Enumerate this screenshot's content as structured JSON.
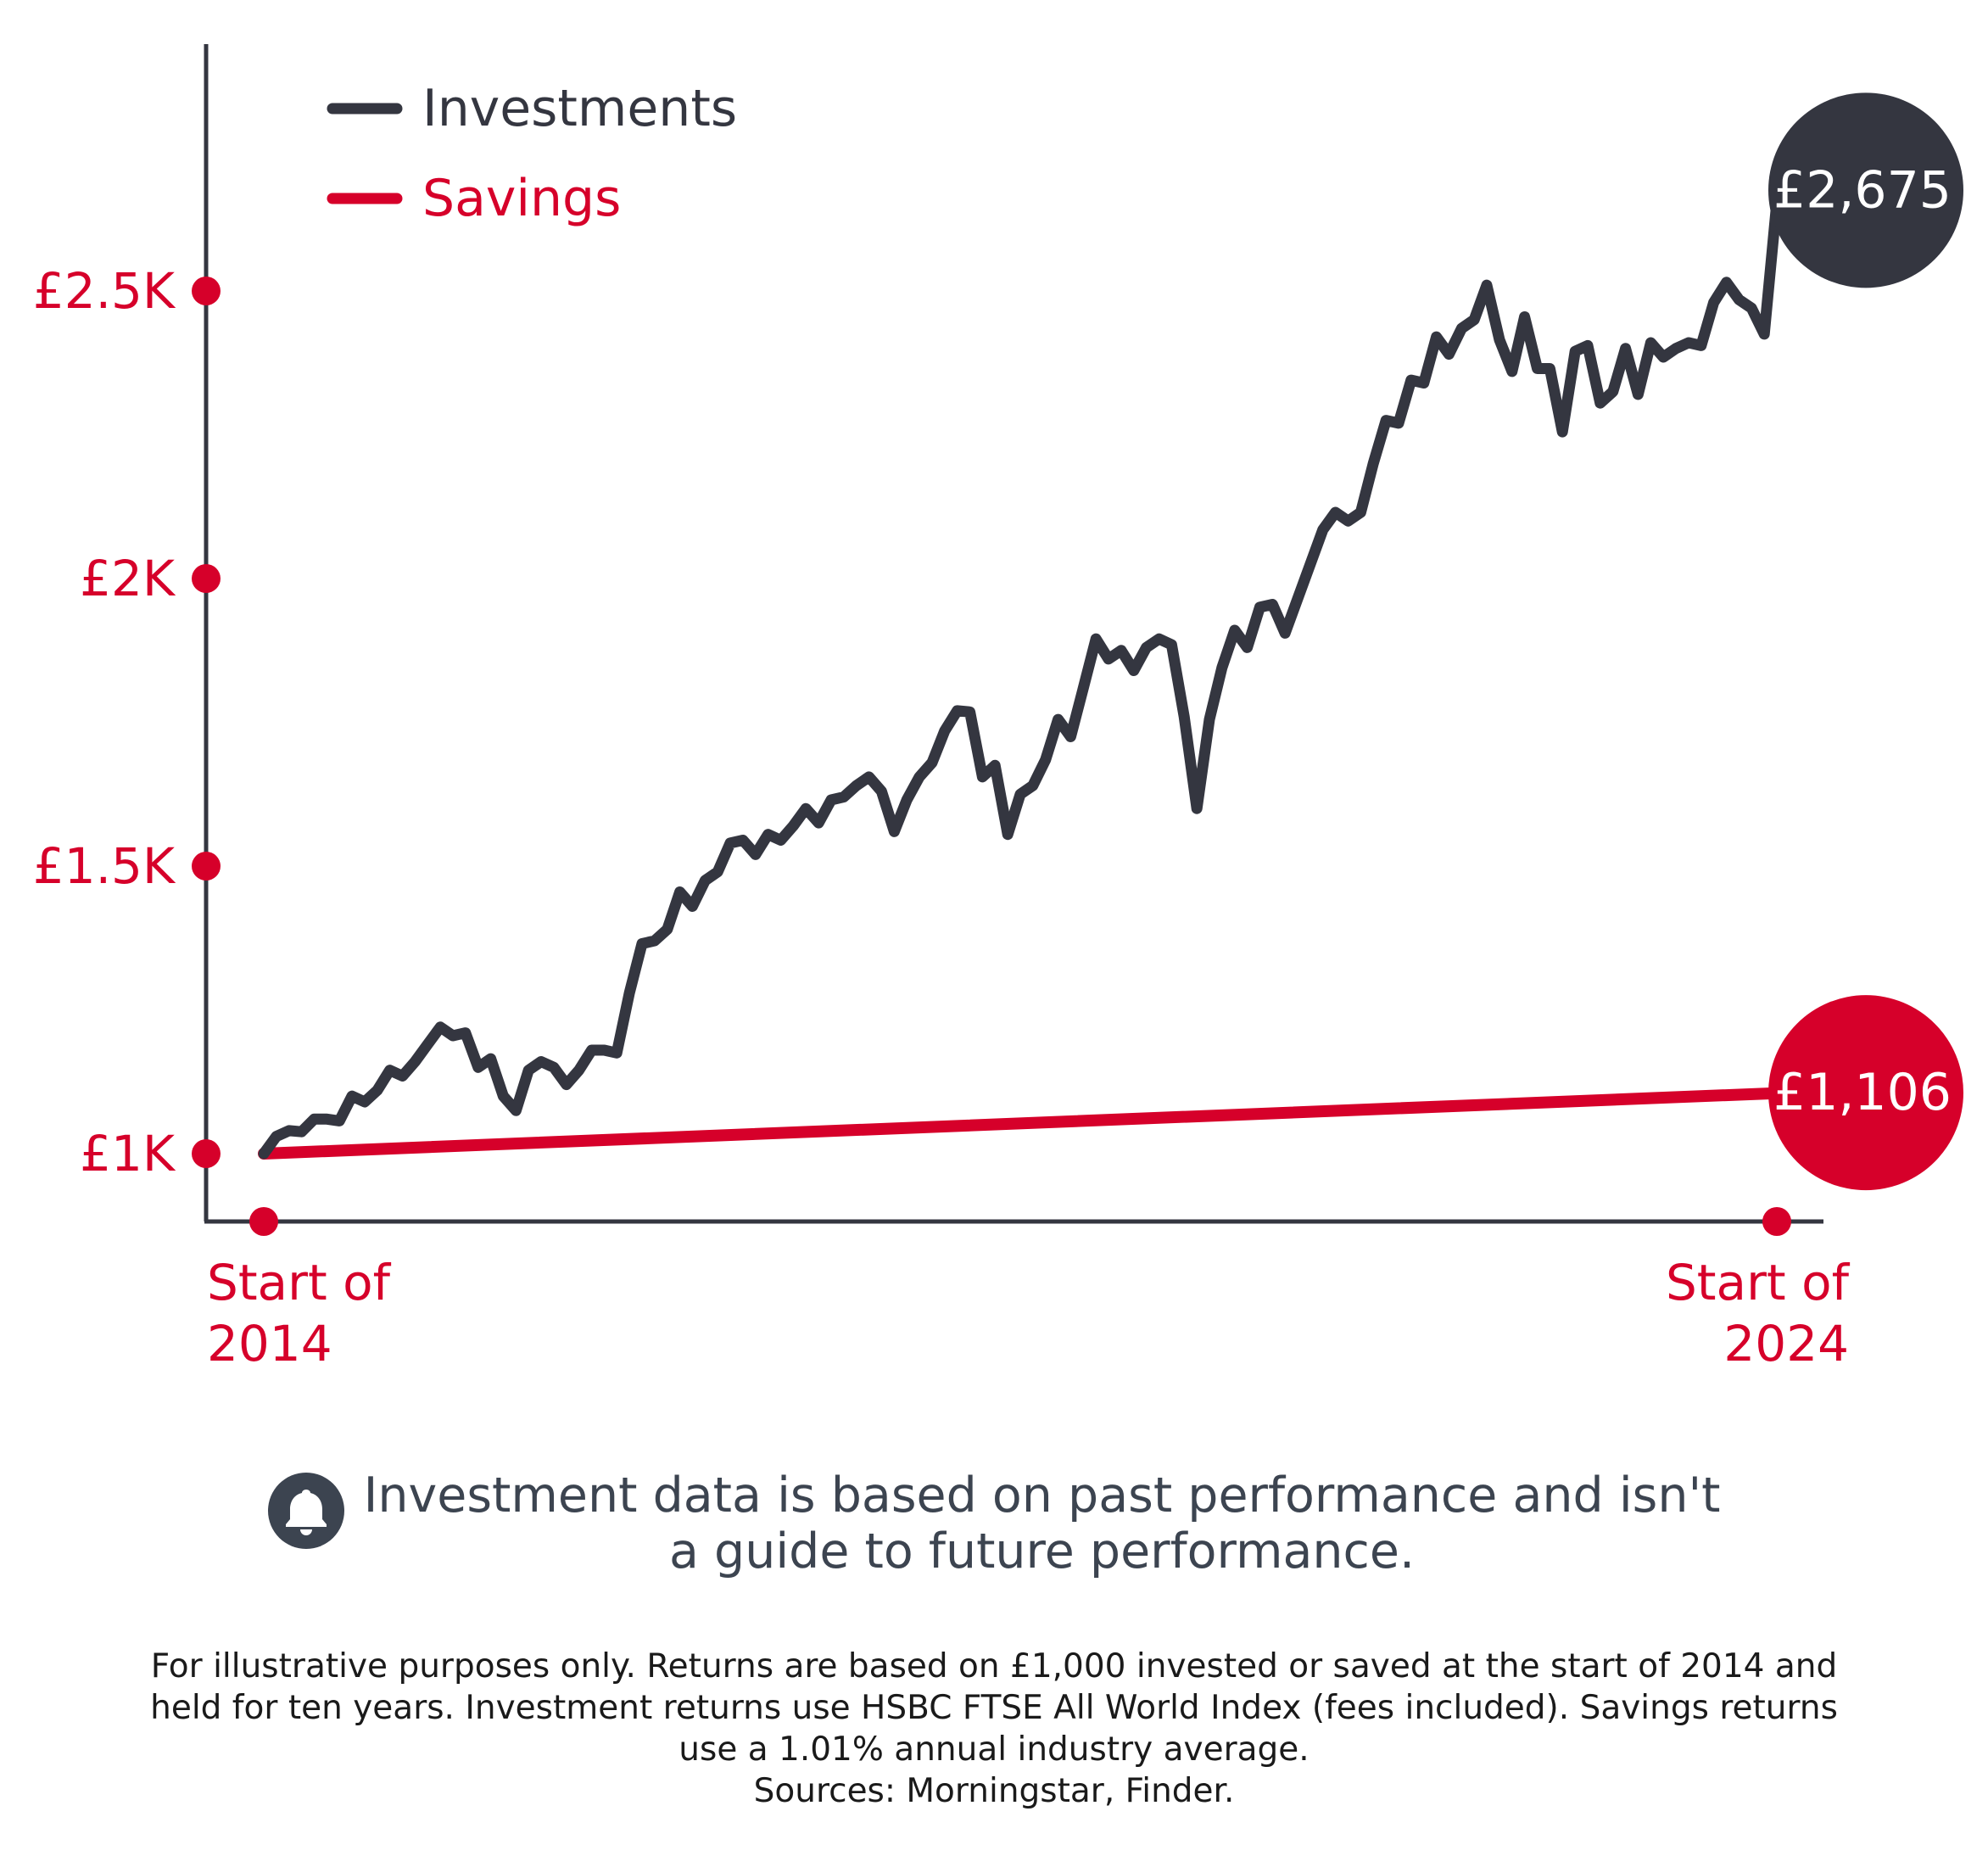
{
  "colors": {
    "investments": "#343640",
    "savings": "#d6002a",
    "axis": "#343640",
    "disclaimer_text": "#3c4450",
    "footnote_text": "#1a1a1a"
  },
  "legend": {
    "investments_label": "Investments",
    "savings_label": "Savings"
  },
  "end_labels": {
    "investments": "£2,675",
    "savings": "£1,106"
  },
  "disclaimer": {
    "icon": "bell-icon",
    "line1": "Investment data is based on past performance and isn't",
    "line2": "a guide to future performance."
  },
  "footnote": {
    "line1": "For illustrative purposes only. Returns are based on £1,000 invested or saved at the start of 2014 and",
    "line2": "held for ten years. Investment returns use HSBC FTSE All World Index (fees included). Savings returns",
    "line3": "use a 1.01% annual industry average.",
    "line4": "Sources: Morningstar, Finder."
  },
  "chart_data": {
    "type": "line",
    "title": "",
    "xlabel": "",
    "ylabel": "",
    "ylim": [
      880,
      2900
    ],
    "y_ticks": [
      {
        "value": 1000,
        "label": "£1K"
      },
      {
        "value": 1500,
        "label": "£1.5K"
      },
      {
        "value": 2000,
        "label": "£2K"
      },
      {
        "value": 2500,
        "label": "£2.5K"
      }
    ],
    "x_range": [
      2014,
      2024
    ],
    "x_ticks": [
      {
        "value": 2014,
        "label_line1": "Start of",
        "label_line2": "2014"
      },
      {
        "value": 2024,
        "label_line1": "Start of",
        "label_line2": "2024"
      }
    ],
    "legend_position": "top-left",
    "grid": false,
    "series": [
      {
        "name": "Investments",
        "color": "#343640",
        "end_value": 2675,
        "points": [
          [
            2014.0,
            1000
          ],
          [
            2014.083,
            1030
          ],
          [
            2014.167,
            1040
          ],
          [
            2014.25,
            1038
          ],
          [
            2014.333,
            1060
          ],
          [
            2014.417,
            1060
          ],
          [
            2014.5,
            1057
          ],
          [
            2014.583,
            1100
          ],
          [
            2014.667,
            1090
          ],
          [
            2014.75,
            1110
          ],
          [
            2014.833,
            1145
          ],
          [
            2014.917,
            1135
          ],
          [
            2015.0,
            1160
          ],
          [
            2015.083,
            1190
          ],
          [
            2015.167,
            1220
          ],
          [
            2015.25,
            1205
          ],
          [
            2015.333,
            1210
          ],
          [
            2015.417,
            1150
          ],
          [
            2015.5,
            1165
          ],
          [
            2015.583,
            1100
          ],
          [
            2015.667,
            1075
          ],
          [
            2015.75,
            1145
          ],
          [
            2015.833,
            1160
          ],
          [
            2015.917,
            1150
          ],
          [
            2016.0,
            1120
          ],
          [
            2016.083,
            1145
          ],
          [
            2016.167,
            1180
          ],
          [
            2016.25,
            1180
          ],
          [
            2016.333,
            1175
          ],
          [
            2016.417,
            1280
          ],
          [
            2016.5,
            1365
          ],
          [
            2016.583,
            1370
          ],
          [
            2016.667,
            1390
          ],
          [
            2016.75,
            1455
          ],
          [
            2016.833,
            1430
          ],
          [
            2016.917,
            1475
          ],
          [
            2017.0,
            1490
          ],
          [
            2017.083,
            1540
          ],
          [
            2017.167,
            1545
          ],
          [
            2017.25,
            1520
          ],
          [
            2017.333,
            1555
          ],
          [
            2017.417,
            1545
          ],
          [
            2017.5,
            1570
          ],
          [
            2017.583,
            1600
          ],
          [
            2017.667,
            1575
          ],
          [
            2017.75,
            1615
          ],
          [
            2017.833,
            1620
          ],
          [
            2017.917,
            1640
          ],
          [
            2018.0,
            1655
          ],
          [
            2018.083,
            1630
          ],
          [
            2018.167,
            1560
          ],
          [
            2018.25,
            1615
          ],
          [
            2018.333,
            1655
          ],
          [
            2018.417,
            1680
          ],
          [
            2018.5,
            1735
          ],
          [
            2018.583,
            1770
          ],
          [
            2018.667,
            1768
          ],
          [
            2018.75,
            1655
          ],
          [
            2018.833,
            1675
          ],
          [
            2018.917,
            1555
          ],
          [
            2019.0,
            1625
          ],
          [
            2019.083,
            1640
          ],
          [
            2019.167,
            1685
          ],
          [
            2019.25,
            1755
          ],
          [
            2019.333,
            1725
          ],
          [
            2019.417,
            1810
          ],
          [
            2019.5,
            1895
          ],
          [
            2019.583,
            1860
          ],
          [
            2019.667,
            1875
          ],
          [
            2019.75,
            1840
          ],
          [
            2019.833,
            1880
          ],
          [
            2019.917,
            1895
          ],
          [
            2020.0,
            1885
          ],
          [
            2020.083,
            1760
          ],
          [
            2020.167,
            1600
          ],
          [
            2020.25,
            1755
          ],
          [
            2020.333,
            1845
          ],
          [
            2020.417,
            1910
          ],
          [
            2020.5,
            1880
          ],
          [
            2020.583,
            1950
          ],
          [
            2020.667,
            1955
          ],
          [
            2020.75,
            1905
          ],
          [
            2021.0,
            2085
          ],
          [
            2021.083,
            2115
          ],
          [
            2021.167,
            2100
          ],
          [
            2021.25,
            2115
          ],
          [
            2021.333,
            2200
          ],
          [
            2021.417,
            2275
          ],
          [
            2021.5,
            2270
          ],
          [
            2021.583,
            2345
          ],
          [
            2021.667,
            2340
          ],
          [
            2021.75,
            2420
          ],
          [
            2021.833,
            2390
          ],
          [
            2021.917,
            2435
          ],
          [
            2022.0,
            2450
          ],
          [
            2022.083,
            2510
          ],
          [
            2022.167,
            2415
          ],
          [
            2022.25,
            2360
          ],
          [
            2022.333,
            2455
          ],
          [
            2022.417,
            2365
          ],
          [
            2022.5,
            2365
          ],
          [
            2022.583,
            2255
          ],
          [
            2022.667,
            2395
          ],
          [
            2022.75,
            2405
          ],
          [
            2022.833,
            2305
          ],
          [
            2022.917,
            2325
          ],
          [
            2023.0,
            2400
          ],
          [
            2023.083,
            2320
          ],
          [
            2023.167,
            2410
          ],
          [
            2023.25,
            2385
          ],
          [
            2023.333,
            2400
          ],
          [
            2023.417,
            2410
          ],
          [
            2023.5,
            2405
          ],
          [
            2023.583,
            2480
          ],
          [
            2023.667,
            2515
          ],
          [
            2023.75,
            2485
          ],
          [
            2023.833,
            2470
          ],
          [
            2023.917,
            2425
          ],
          [
            2024.0,
            2655
          ],
          [
            2024.083,
            2675
          ]
        ]
      },
      {
        "name": "Savings",
        "color": "#d6002a",
        "end_value": 1106,
        "points": [
          [
            2014.0,
            1000
          ],
          [
            2024.083,
            1106
          ]
        ]
      }
    ]
  }
}
